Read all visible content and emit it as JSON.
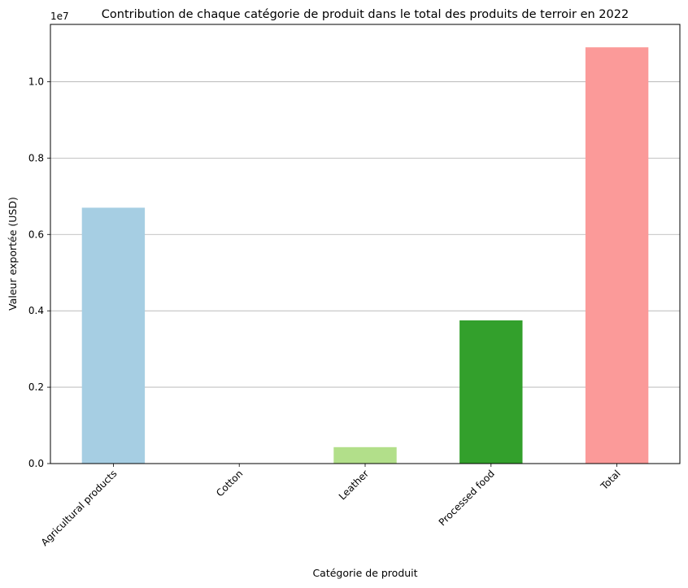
{
  "chart_data": {
    "type": "bar",
    "title": "Contribution de chaque catégorie de produit dans le total des produits de terroir en 2022",
    "xlabel": "Catégorie de produit",
    "ylabel": "Valeur exportée (USD)",
    "y_offset_label": "1e7",
    "categories": [
      "Agricultural products",
      "Cotton",
      "Leather",
      "Processed food",
      "Total"
    ],
    "values": [
      6700000,
      0,
      430000,
      3750000,
      10900000
    ],
    "colors": [
      "#a6cee3",
      "#1f78b4",
      "#b2df8a",
      "#33a02c",
      "#fb9a99"
    ],
    "ylim": [
      0,
      11500000
    ],
    "y_ticks": [
      0,
      2000000,
      4000000,
      6000000,
      8000000,
      10000000
    ],
    "y_tick_labels": [
      "0.0",
      "0.2",
      "0.4",
      "0.6",
      "0.8",
      "1.0"
    ],
    "grid": "y",
    "legend": "none"
  }
}
